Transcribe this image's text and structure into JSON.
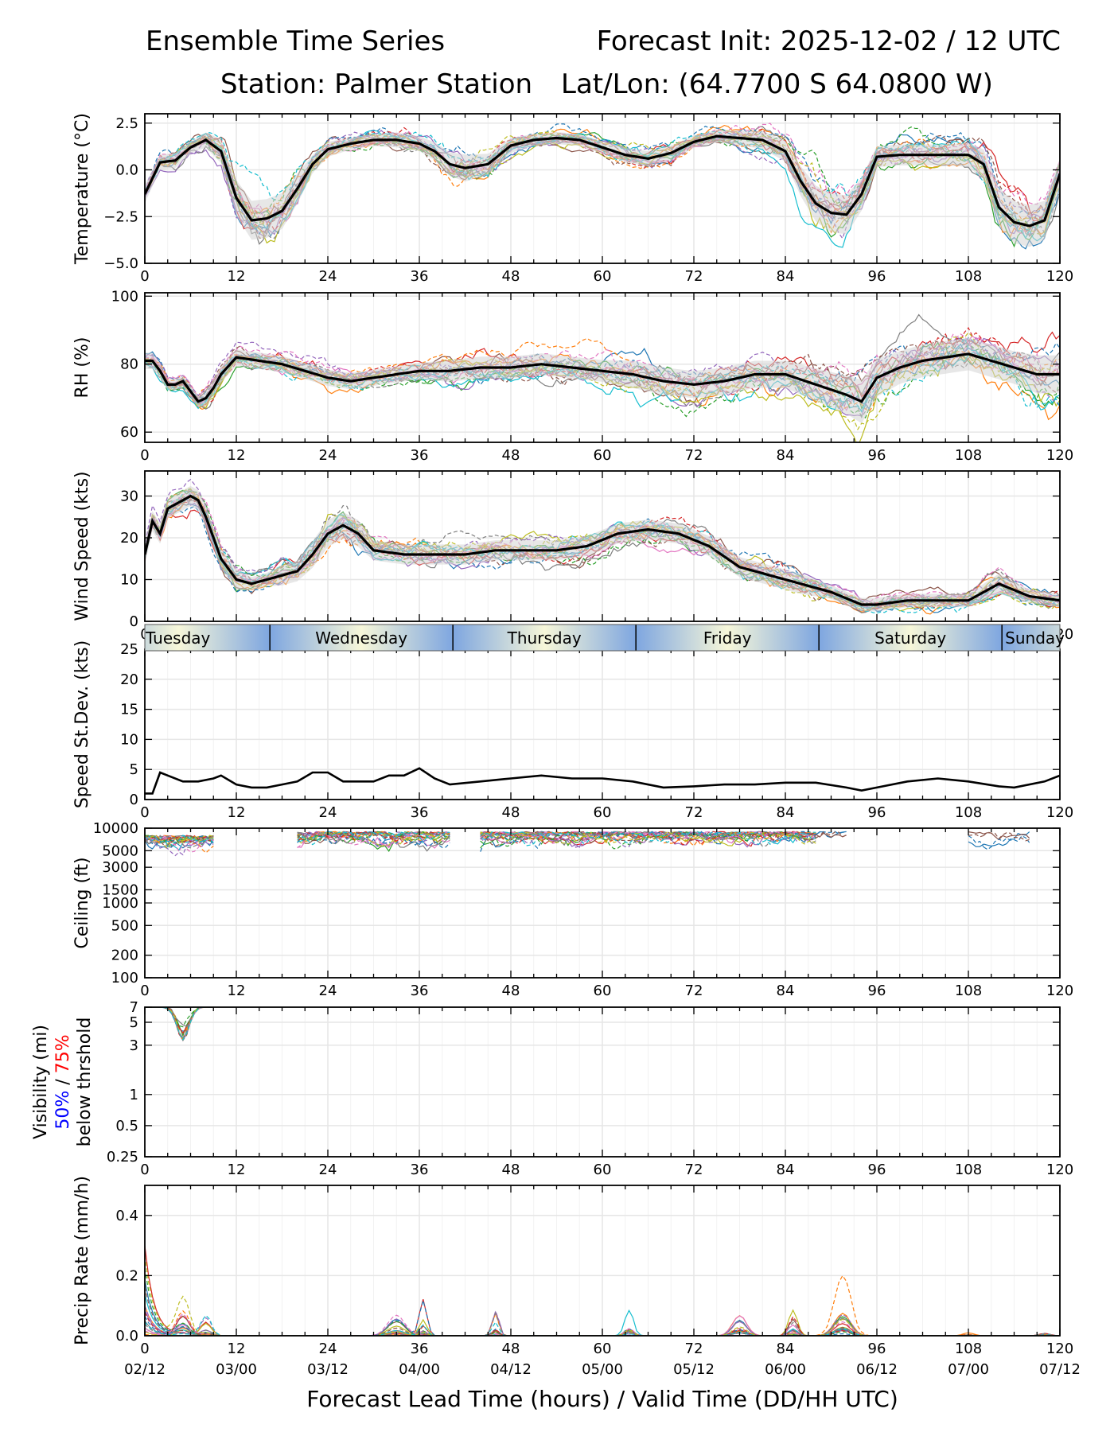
{
  "header": {
    "title": "Ensemble Time Series",
    "init": "Forecast Init: 2025-12-02 / 12 UTC",
    "station": "Station: Palmer Station",
    "latlon": "Lat/Lon: (64.7700 S 64.0800 W)"
  },
  "x_axis": {
    "lead_hours": [
      0,
      12,
      24,
      36,
      48,
      60,
      72,
      84,
      96,
      108,
      120
    ],
    "lead_labels": [
      "0",
      "12",
      "24",
      "36",
      "48",
      "60",
      "72",
      "84",
      "96",
      "108",
      "120"
    ],
    "valid_labels": [
      "02/12",
      "03/00",
      "03/12",
      "04/00",
      "04/12",
      "05/00",
      "05/12",
      "06/00",
      "06/12",
      "07/00",
      "07/12"
    ],
    "xlabel": "Forecast Lead Time (hours) / Valid Time (DD/HH UTC)",
    "xlim": [
      0,
      120
    ]
  },
  "day_band": {
    "labels": [
      "Tuesday",
      "Wednesday",
      "Thursday",
      "Friday",
      "Saturday",
      "Sunday"
    ],
    "boundaries_hours": [
      16.4,
      40.4,
      64.4,
      88.4,
      112.4
    ]
  },
  "chart_data": [
    {
      "type": "line",
      "id": "temp",
      "ylabel": "Temperature (°C)",
      "ylim": [
        -5.0,
        3.0
      ],
      "yticks": [
        -5.0,
        -2.5,
        0.0,
        2.5
      ],
      "ytick_labels": [
        "−5.0",
        "−2.5",
        "0.0",
        "2.5"
      ],
      "x": [
        0,
        2,
        4,
        6,
        8,
        10,
        12,
        14,
        16,
        18,
        20,
        22,
        24,
        27,
        30,
        33,
        36,
        38,
        40,
        42,
        45,
        48,
        51,
        54,
        57,
        60,
        63,
        66,
        69,
        72,
        75,
        78,
        81,
        84,
        86,
        88,
        90,
        92,
        94,
        96,
        99,
        102,
        105,
        108,
        110,
        112,
        114,
        116,
        118,
        120
      ],
      "mean": [
        -1.3,
        0.4,
        0.5,
        1.2,
        1.6,
        1.0,
        -1.5,
        -2.7,
        -2.6,
        -2.2,
        -1.0,
        0.3,
        1.1,
        1.4,
        1.6,
        1.6,
        1.4,
        1.0,
        0.3,
        0.1,
        0.3,
        1.3,
        1.6,
        1.7,
        1.6,
        1.2,
        0.8,
        0.6,
        0.9,
        1.5,
        1.8,
        1.7,
        1.6,
        1.0,
        -0.6,
        -1.8,
        -2.3,
        -2.4,
        -1.3,
        0.7,
        0.8,
        0.8,
        0.8,
        0.8,
        0.3,
        -2.0,
        -2.8,
        -3.0,
        -2.7,
        -0.2
      ],
      "spread": [
        0.6,
        0.5,
        0.5,
        0.4,
        0.5,
        0.8,
        1.2,
        1.3,
        1.3,
        1.2,
        1.0,
        0.6,
        0.5,
        0.4,
        0.4,
        0.5,
        0.5,
        0.6,
        0.8,
        0.9,
        0.7,
        0.5,
        0.4,
        0.4,
        0.4,
        0.4,
        0.5,
        0.5,
        0.5,
        0.4,
        0.4,
        0.5,
        0.6,
        0.7,
        1.0,
        1.2,
        1.3,
        1.3,
        1.1,
        0.7,
        0.7,
        0.7,
        0.7,
        0.8,
        1.0,
        1.3,
        1.4,
        1.4,
        1.3,
        1.0
      ],
      "members": 20
    },
    {
      "type": "line",
      "id": "rh",
      "ylabel": "RH (%)",
      "ylim": [
        57,
        101
      ],
      "yticks": [
        60,
        80,
        100
      ],
      "ytick_labels": [
        "60",
        "80",
        "100"
      ],
      "x": [
        0,
        1,
        2,
        3,
        4,
        5,
        6,
        7,
        8,
        9,
        10,
        12,
        15,
        18,
        21,
        24,
        27,
        30,
        33,
        36,
        40,
        44,
        48,
        52,
        56,
        60,
        64,
        68,
        72,
        76,
        80,
        84,
        88,
        92,
        94,
        96,
        99,
        102,
        105,
        108,
        111,
        114,
        117,
        120
      ],
      "mean": [
        81,
        81,
        78,
        74,
        74,
        75,
        72,
        69,
        70,
        73,
        77,
        82,
        81,
        80,
        78,
        76,
        75,
        76,
        77,
        78,
        78,
        79,
        79,
        80,
        79,
        78,
        77,
        75,
        74,
        75,
        77,
        77,
        74,
        71,
        69,
        76,
        79,
        81,
        82,
        83,
        81,
        79,
        77,
        77
      ],
      "spread": [
        3,
        3,
        3,
        2,
        2,
        2,
        2,
        2,
        3,
        3,
        3,
        3,
        3,
        3,
        3,
        3,
        3,
        3,
        3,
        3,
        4,
        4,
        4,
        4,
        4,
        4,
        5,
        5,
        5,
        5,
        5,
        5,
        6,
        7,
        8,
        7,
        6,
        6,
        6,
        6,
        6,
        6,
        7,
        7
      ],
      "members": 20
    },
    {
      "type": "line",
      "id": "wspd",
      "ylabel": "Wind Speed (kts)",
      "ylim": [
        0,
        36
      ],
      "yticks": [
        0,
        10,
        20,
        30
      ],
      "ytick_labels": [
        "0",
        "10",
        "20",
        "30"
      ],
      "x": [
        0,
        1,
        2,
        3,
        4,
        6,
        7,
        8,
        10,
        12,
        14,
        16,
        18,
        20,
        22,
        24,
        26,
        28,
        30,
        34,
        38,
        42,
        46,
        50,
        54,
        58,
        62,
        66,
        70,
        74,
        78,
        82,
        86,
        90,
        94,
        96,
        100,
        104,
        108,
        112,
        116,
        120
      ],
      "mean": [
        16,
        24,
        21,
        27,
        28,
        30,
        29,
        25,
        15,
        10,
        9,
        10,
        11,
        12,
        16,
        21,
        23,
        21,
        17,
        16,
        16,
        16,
        17,
        17,
        17,
        18,
        21,
        22,
        21,
        18,
        13,
        11,
        9,
        7,
        4,
        4,
        5,
        5,
        5,
        9,
        6,
        5
      ],
      "spread": [
        3,
        3,
        3,
        3,
        3,
        3,
        3,
        3,
        3,
        3,
        2,
        2,
        3,
        3,
        4,
        4,
        4,
        4,
        3,
        3,
        3,
        3,
        3,
        3,
        3,
        3,
        3,
        3,
        3,
        3,
        3,
        3,
        3,
        2,
        2,
        2,
        2,
        2,
        2,
        3,
        2,
        2
      ],
      "members": 20
    },
    {
      "type": "line",
      "id": "wsd",
      "ylabel": "Speed St.Dev. (kts)",
      "ylim": [
        0,
        25
      ],
      "yticks": [
        0,
        5,
        10,
        15,
        20,
        25
      ],
      "ytick_labels": [
        "0",
        "5",
        "10",
        "15",
        "20",
        "25"
      ],
      "x": [
        0,
        1,
        2,
        3,
        5,
        7,
        9,
        10,
        12,
        14,
        16,
        18,
        20,
        22,
        24,
        26,
        28,
        30,
        32,
        34,
        36,
        38,
        40,
        44,
        48,
        52,
        56,
        60,
        64,
        68,
        72,
        76,
        80,
        84,
        88,
        92,
        94,
        96,
        100,
        104,
        108,
        112,
        114,
        118,
        120
      ],
      "values": [
        1,
        1,
        4.5,
        4,
        3,
        3,
        3.5,
        4,
        2.5,
        2,
        2,
        2.5,
        3,
        4.5,
        4.5,
        3,
        3,
        3,
        4,
        4,
        5.2,
        3.5,
        2.5,
        3,
        3.5,
        4,
        3.5,
        3.5,
        3,
        2,
        2.2,
        2.5,
        2.5,
        2.8,
        2.8,
        2,
        1.5,
        2,
        3,
        3.5,
        3,
        2.2,
        2,
        3,
        4
      ]
    },
    {
      "type": "line",
      "id": "ceil",
      "ylabel": "Ceiling (ft)",
      "scale": "log",
      "ylim": [
        100,
        10000
      ],
      "yticks": [
        100,
        200,
        500,
        1000,
        1500,
        3000,
        5000,
        10000
      ],
      "ytick_labels": [
        "100",
        "200",
        "500",
        "1000",
        "1500",
        "3000",
        "5000",
        "10000"
      ],
      "members": 20
    },
    {
      "type": "line",
      "id": "vis",
      "ylabel_top": "Visibility (mi)",
      "ylabel_p50": "50%",
      "ylabel_sep": " / ",
      "ylabel_p75": "75%",
      "ylabel_bottom": "below thrshold",
      "scale": "log",
      "ylim": [
        0.25,
        7
      ],
      "yticks": [
        0.25,
        0.5,
        1,
        3,
        5,
        7
      ],
      "ytick_labels": [
        "0.25",
        "0.5",
        "1",
        "3",
        "5",
        "7"
      ],
      "members": 20
    },
    {
      "type": "line",
      "id": "precip",
      "ylabel": "Precip Rate (mm/h)",
      "ylim": [
        0,
        0.5
      ],
      "yticks": [
        0.0,
        0.2,
        0.4
      ],
      "ytick_labels": [
        "0.0",
        "0.2",
        "0.4"
      ],
      "members": 20
    }
  ],
  "colors": {
    "members": [
      "#1f77b4",
      "#ff7f0e",
      "#2ca02c",
      "#d62728",
      "#9467bd",
      "#8c564b",
      "#e377c2",
      "#7f7f7f",
      "#bcbd22",
      "#17becf"
    ],
    "mean": "#000000",
    "spread": "#d3d3d3",
    "grid": "#e6e6e6",
    "day_dark": "#7ea6e0",
    "day_light": "#f7f7d9",
    "p50": "#0000ff",
    "p75": "#ff0000"
  }
}
